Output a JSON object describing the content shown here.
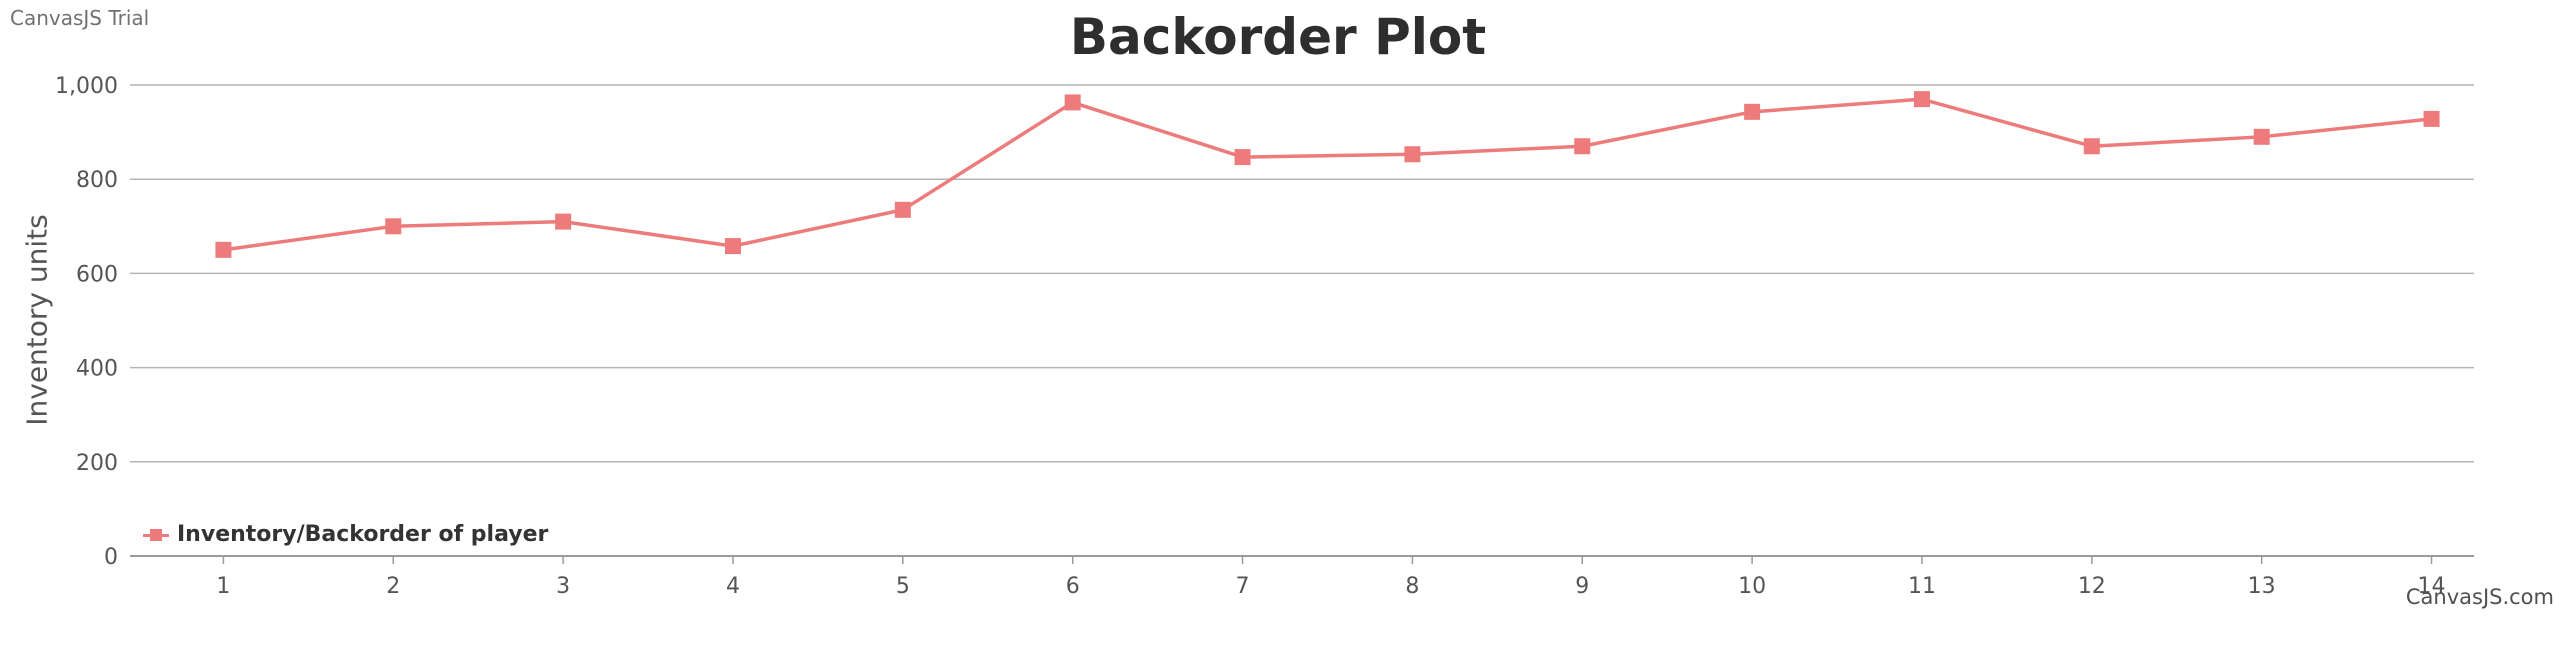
{
  "watermark": "CanvasJS Trial",
  "credit": "CanvasJS.com",
  "colors": {
    "series": "#ee7b7b",
    "grid": "#b4b4b4",
    "axis": "#9a9a9a",
    "text": "#555555"
  },
  "chart_data": {
    "type": "line",
    "title": "Backorder Plot",
    "xlabel": "",
    "ylabel": "Inventory units",
    "x": [
      1,
      2,
      3,
      4,
      5,
      6,
      7,
      8,
      9,
      10,
      11,
      12,
      13,
      14
    ],
    "xlim": [
      0.45,
      14.25
    ],
    "ylim": [
      0,
      1000
    ],
    "yticks": [
      0,
      200,
      400,
      600,
      800,
      1000
    ],
    "ytick_labels": [
      "0",
      "200",
      "400",
      "600",
      "800",
      "1,000"
    ],
    "grid": true,
    "legend_position": "bottom-left",
    "series": [
      {
        "name": "Inventory/Backorder of player",
        "values": [
          650,
          700,
          710,
          658,
          735,
          963,
          847,
          853,
          870,
          943,
          970,
          870,
          890,
          928
        ]
      }
    ]
  }
}
